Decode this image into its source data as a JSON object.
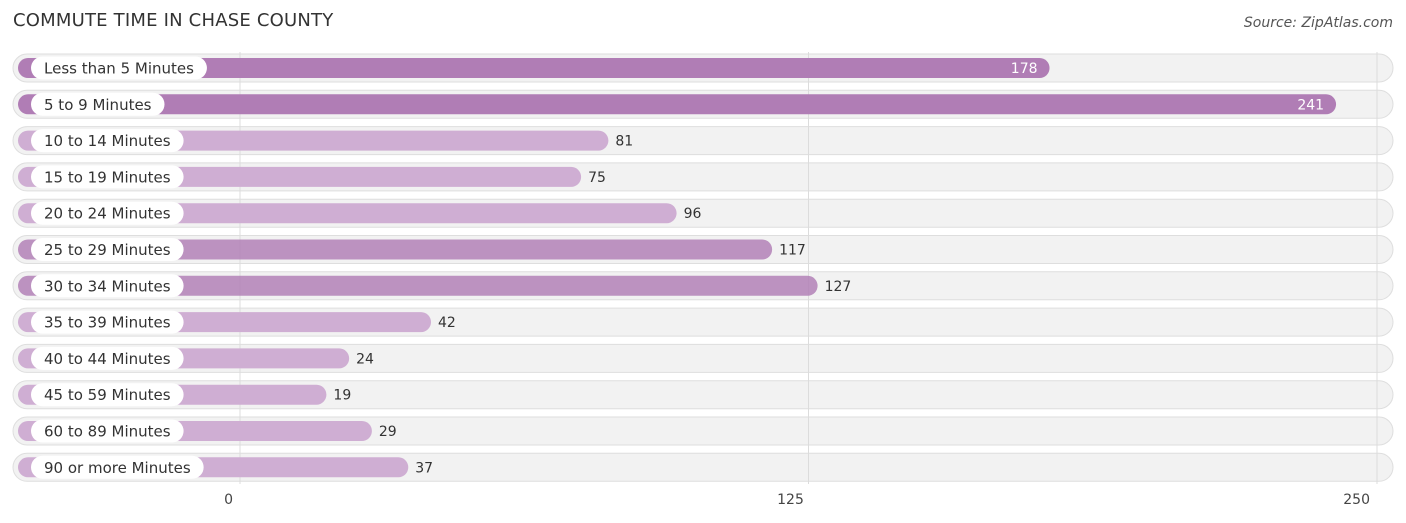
{
  "header": {
    "title": "COMMUTE TIME IN CHASE COUNTY",
    "source": "Source: ZipAtlas.com"
  },
  "colors": {
    "bar_strong": "#b07db5",
    "bar_light": "#cfaed3",
    "track": "#f2f2f2",
    "track_border": "#dedede",
    "grid": "#dcdcdc"
  },
  "chart_data": {
    "type": "bar",
    "orientation": "horizontal",
    "title": "COMMUTE TIME IN CHASE COUNTY",
    "categories": [
      "Less than 5 Minutes",
      "5 to 9 Minutes",
      "10 to 14 Minutes",
      "15 to 19 Minutes",
      "20 to 24 Minutes",
      "25 to 29 Minutes",
      "30 to 34 Minutes",
      "35 to 39 Minutes",
      "40 to 44 Minutes",
      "45 to 59 Minutes",
      "60 to 89 Minutes",
      "90 or more Minutes"
    ],
    "values": [
      178,
      241,
      81,
      75,
      96,
      117,
      127,
      42,
      24,
      19,
      29,
      37
    ],
    "xlim": [
      0,
      250
    ],
    "ticks": [
      0,
      125,
      250
    ],
    "grid": true,
    "value_labels_inside": [
      true,
      true,
      false,
      false,
      false,
      false,
      false,
      false,
      false,
      false,
      false,
      false
    ]
  }
}
